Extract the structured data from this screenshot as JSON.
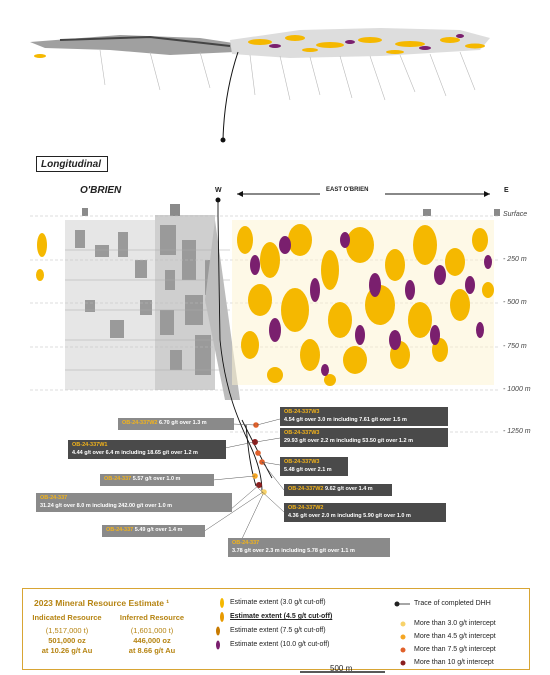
{
  "section_labels": {
    "longitudinal": "Longitudinal",
    "obrien": "O'BRIEN",
    "w": "W",
    "e": "E",
    "east_obrien": "EAST O'BRIEN"
  },
  "depth_labels": [
    "Surface",
    "- 250 m",
    "- 500 m",
    "- 750 m",
    "- 1000 m",
    "- 1250 m"
  ],
  "drill_intercepts": [
    {
      "id": "OB-24-337W2",
      "text": "6.70 g/t over 1.3 m"
    },
    {
      "id": "OB-24-337W1",
      "text": "4.44 g/t over 6.4 m including 18.65 g/t over 1.2 m"
    },
    {
      "id": "OB-24-337",
      "text": "5.57 g/t over 1.0 m"
    },
    {
      "id": "OB-24-337",
      "text": "31.24 g/t over 8.0 m including 242.00 g/t over 1.0 m"
    },
    {
      "id": "OB-24-337",
      "text": "5.49 g/t over 1.4 m"
    },
    {
      "id": "OB-24-337W3",
      "text": "4.54 g/t over 3.0 m including 7.61 g/t over 1.5 m"
    },
    {
      "id": "OB-24-337W3",
      "text": "29.93 g/t over 2.2 m including 53.50 g/t over 1.2 m"
    },
    {
      "id": "OB-24-337W3",
      "text": "5.48 g/t over 2.1 m"
    },
    {
      "id": "OB-24-337W2",
      "text": "9.62 g/t over 1.4 m"
    },
    {
      "id": "OB-24-337W2",
      "text": "4.36 g/t over 2.0 m including 5.90 g/t over 1.0 m"
    },
    {
      "id": "OB-24-337",
      "text": "3.78 g/t over 2.3 m including 5.78 g/t over 1.1 m"
    }
  ],
  "resource": {
    "title": "2023 Mineral Resource Estimate ¹",
    "indicated": {
      "heading": "Indicated Resource",
      "tonnes": "(1,517,000 t)",
      "oz": "501,000 oz",
      "grade": "at 10.26 g/t Au"
    },
    "inferred": {
      "heading": "Inferred Resource",
      "tonnes": "(1,601,000 t)",
      "oz": "446,000 oz",
      "grade": "at 8.66 g/t Au"
    }
  },
  "legend": {
    "estimates": [
      {
        "label": "Estimate extent (3.0  g/t cut-off)",
        "color": "#f5b800"
      },
      {
        "label": "Estimate extent (4.5  g/t cut-off)",
        "color": "#e89a00"
      },
      {
        "label": "Estimate extent (7.5 g/t cut-off)",
        "color": "#c77a00"
      },
      {
        "label": "Estimate extent (10.0 g/t cut-off)",
        "color": "#7a1f6e"
      }
    ],
    "trace": "Trace of completed DHH",
    "intercepts": [
      {
        "label": "More than 3.0 g/t intercept",
        "color": "#f7d26a"
      },
      {
        "label": "More than 4.5 g/t intercept",
        "color": "#f5a623"
      },
      {
        "label": "More than 7.5 g/t intercept",
        "color": "#e0602a"
      },
      {
        "label": "More than 10 g/t intercept",
        "color": "#8b1e1e"
      }
    ]
  },
  "scale_bar": "500 m"
}
